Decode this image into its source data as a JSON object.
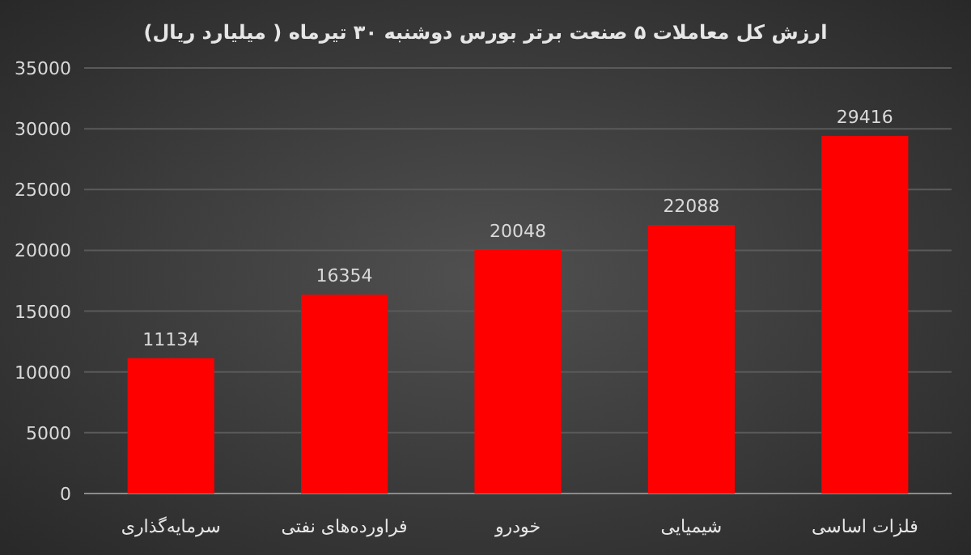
{
  "chart_data": {
    "type": "bar",
    "title": "ارزش کل معاملات ۵ صنعت برتر بورس دوشنبه ۳۰ تیرماه ( میلیارد ریال)",
    "categories": [
      "سرمایه‌گذاری",
      "فراورده‌های نفتی",
      "خودرو",
      "شیمیایی",
      "فلزات اساسی"
    ],
    "values": [
      11134,
      16354,
      20048,
      22088,
      29416
    ],
    "color": "#ff0000",
    "ylim": [
      0,
      35000
    ],
    "yticks": [
      0,
      5000,
      10000,
      15000,
      20000,
      25000,
      30000,
      35000
    ],
    "grid": "y",
    "data_labels": true
  }
}
